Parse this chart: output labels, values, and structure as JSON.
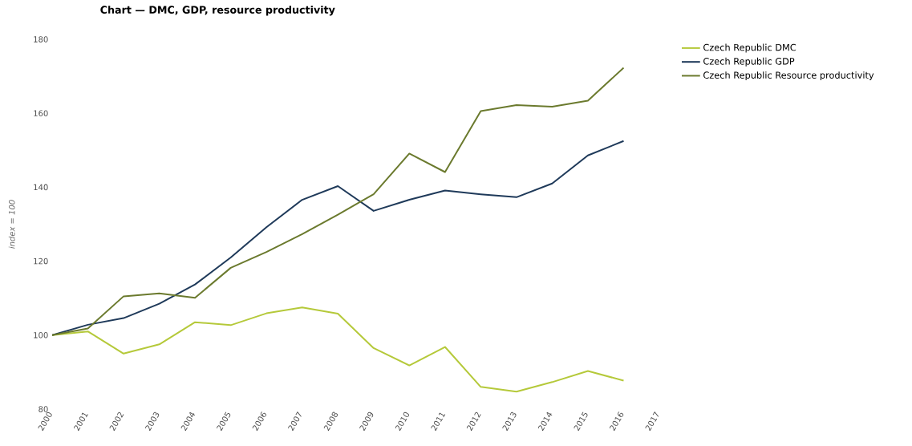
{
  "chart_data": {
    "type": "line",
    "title": "Chart — DMC, GDP, resource productivity",
    "ylabel": "index = 100",
    "categories": [
      "2000",
      "2001",
      "2002",
      "2003",
      "2004",
      "2005",
      "2006",
      "2007",
      "2008",
      "2009",
      "2010",
      "2011",
      "2012",
      "2013",
      "2014",
      "2015",
      "2016",
      "2017"
    ],
    "series": [
      {
        "name": "Czech Republic DMC",
        "color": "#b5c93a",
        "values": [
          100,
          101,
          95,
          97.5,
          103.5,
          102.7,
          105.9,
          107.5,
          105.8,
          96.5,
          91.8,
          96.8,
          86,
          84.7,
          87.3,
          90.3,
          87.7,
          null
        ]
      },
      {
        "name": "Czech Republic GDP",
        "color": "#1f3a5a",
        "values": [
          100,
          102.8,
          104.6,
          108.5,
          113.7,
          121,
          129.2,
          136.6,
          140.3,
          133.6,
          136.6,
          139.1,
          138.1,
          137.3,
          141,
          148.6,
          152.5,
          null
        ]
      },
      {
        "name": "Czech Republic Resource productivity",
        "color": "#6b7a2e",
        "values": [
          100,
          101.8,
          110.5,
          111.3,
          110.1,
          118.2,
          122.5,
          127.3,
          132.6,
          138.1,
          149.1,
          144.1,
          160.6,
          162.2,
          161.8,
          163.4,
          172.3,
          null
        ]
      }
    ],
    "ylim": [
      80,
      180
    ],
    "yticks": [
      80,
      100,
      120,
      140,
      160,
      180
    ],
    "grid": false,
    "legend": "top right",
    "marker": "none",
    "line_style": "solid"
  }
}
